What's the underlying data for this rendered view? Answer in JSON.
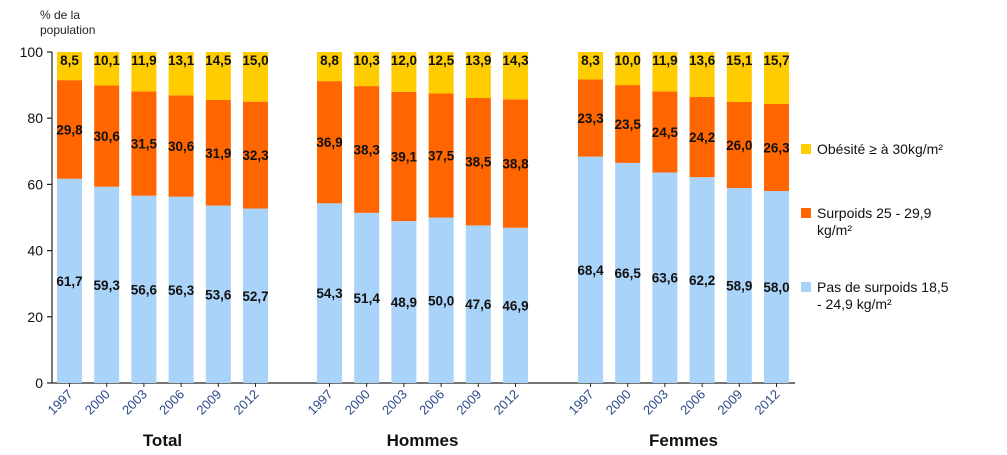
{
  "chart_data": {
    "type": "bar",
    "stacked": true,
    "ylabel": "% de la population",
    "ylim": [
      0,
      100
    ],
    "yticks": [
      0,
      20,
      40,
      60,
      80,
      100
    ],
    "grid": false,
    "legend_position": "right",
    "groups": [
      {
        "name": "Total",
        "categories": [
          "1997",
          "2000",
          "2003",
          "2006",
          "2009",
          "2012"
        ],
        "series": [
          {
            "name": "Pas de surpoids 18,5 - 24,9 kg/m²",
            "values": [
              61.7,
              59.3,
              56.6,
              56.3,
              53.6,
              52.7
            ],
            "labels": [
              "61,7",
              "59,3",
              "56,6",
              "56,3",
              "53,6",
              "52,7"
            ]
          },
          {
            "name": "Surpoids 25 - 29,9 kg/m²",
            "values": [
              29.8,
              30.6,
              31.5,
              30.6,
              31.9,
              32.3
            ],
            "labels": [
              "29,8",
              "30,6",
              "31,5",
              "30,6",
              "31,9",
              "32,3"
            ]
          },
          {
            "name": "Obésité ≥ à 30kg/m²",
            "values": [
              8.5,
              10.1,
              11.9,
              13.1,
              14.5,
              15.0
            ],
            "labels": [
              "8,5",
              "10,1",
              "11,9",
              "13,1",
              "14,5",
              "15,0"
            ]
          }
        ]
      },
      {
        "name": "Hommes",
        "categories": [
          "1997",
          "2000",
          "2003",
          "2006",
          "2009",
          "2012"
        ],
        "series": [
          {
            "name": "Pas de surpoids 18,5 - 24,9 kg/m²",
            "values": [
              54.3,
              51.4,
              48.9,
              50.0,
              47.6,
              46.9
            ],
            "labels": [
              "54,3",
              "51,4",
              "48,9",
              "50,0",
              "47,6",
              "46,9"
            ]
          },
          {
            "name": "Surpoids 25 - 29,9 kg/m²",
            "values": [
              36.9,
              38.3,
              39.1,
              37.5,
              38.5,
              38.8
            ],
            "labels": [
              "36,9",
              "38,3",
              "39,1",
              "37,5",
              "38,5",
              "38,8"
            ]
          },
          {
            "name": "Obésité ≥ à 30kg/m²",
            "values": [
              8.8,
              10.3,
              12.0,
              12.5,
              13.9,
              14.3
            ],
            "labels": [
              "8,8",
              "10,3",
              "12,0",
              "12,5",
              "13,9",
              "14,3"
            ]
          }
        ]
      },
      {
        "name": "Femmes",
        "categories": [
          "1997",
          "2000",
          "2003",
          "2006",
          "2009",
          "2012"
        ],
        "series": [
          {
            "name": "Pas de surpoids 18,5 - 24,9 kg/m²",
            "values": [
              68.4,
              66.5,
              63.6,
              62.2,
              58.9,
              58.0
            ],
            "labels": [
              "68,4",
              "66,5",
              "63,6",
              "62,2",
              "58,9",
              "58,0"
            ]
          },
          {
            "name": "Surpoids 25 - 29,9 kg/m²",
            "values": [
              23.3,
              23.5,
              24.5,
              24.2,
              26.0,
              26.3
            ],
            "labels": [
              "23,3",
              "23,5",
              "24,5",
              "24,2",
              "26,0",
              "26,3"
            ]
          },
          {
            "name": "Obésité ≥ à 30kg/m²",
            "values": [
              8.3,
              10.0,
              11.9,
              13.6,
              15.1,
              15.7
            ],
            "labels": [
              "8,3",
              "10,0",
              "11,9",
              "13,6",
              "15,1",
              "15,7"
            ]
          }
        ]
      }
    ],
    "colors": {
      "Pas de surpoids": "#a9d3f8",
      "Surpoids": "#ff6600",
      "Obésité": "#ffcc00",
      "axis": "#222222"
    },
    "legend": [
      {
        "key": "obesite",
        "color": "#ffcc00",
        "lines": [
          "Obésité ≥ à 30kg/m²"
        ]
      },
      {
        "key": "surpoids",
        "color": "#ff6600",
        "lines": [
          "Surpoids 25 - 29,9",
          "kg/m²"
        ]
      },
      {
        "key": "normal",
        "color": "#a9d3f8",
        "lines": [
          "Pas de surpoids 18,5",
          "- 24,9 kg/m²"
        ]
      }
    ],
    "ylabel_lines": [
      "% de la",
      "population"
    ]
  }
}
